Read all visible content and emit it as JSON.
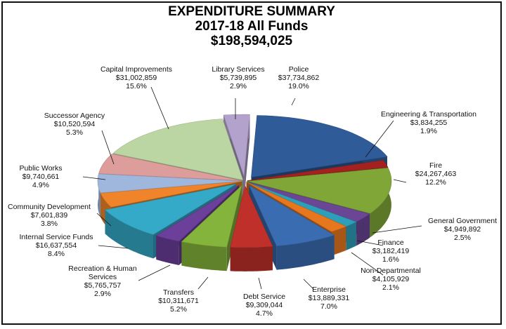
{
  "chart_data": {
    "type": "pie",
    "title": [
      "EXPENDITURE SUMMARY",
      "2017-18  All Funds",
      "$198,594,025"
    ],
    "slices": [
      {
        "name": "Police",
        "amount": "$37,734,862",
        "percent": 19.0,
        "pct_label": "19.0%",
        "color": "#2f5b98",
        "explode": 1
      },
      {
        "name": "Engineering & Transportation",
        "amount": "$3,834,255",
        "percent": 1.9,
        "pct_label": "1.9%",
        "color": "#a32220",
        "explode": 0
      },
      {
        "name": "Fire",
        "amount": "$24,267,463",
        "percent": 12.2,
        "pct_label": "12.2%",
        "color": "#7fa637",
        "explode": 0
      },
      {
        "name": "General Government",
        "amount": "$4,949,892",
        "percent": 2.5,
        "pct_label": "2.5%",
        "color": "#6a4694",
        "explode": 0
      },
      {
        "name": "Finance",
        "amount": "$3,182,419",
        "percent": 1.6,
        "pct_label": "1.6%",
        "color": "#2d9fb8",
        "explode": 0
      },
      {
        "name": "Non-Departmental",
        "amount": "$4,105,929",
        "percent": 2.1,
        "pct_label": "2.1%",
        "color": "#e7771e",
        "explode": 0
      },
      {
        "name": "Enterprise",
        "amount": "$13,889,331",
        "percent": 7.0,
        "pct_label": "7.0%",
        "color": "#3a6cb2",
        "explode": 1
      },
      {
        "name": "Debt Service",
        "amount": "$9,309,044",
        "percent": 4.7,
        "pct_label": "4.7%",
        "color": "#c0302a",
        "explode": 1
      },
      {
        "name": "Transfers",
        "amount": "$10,311,671",
        "percent": 5.2,
        "pct_label": "5.2%",
        "color": "#85b43c",
        "explode": 1
      },
      {
        "name": "Recreation & Human Services",
        "amount": "$5,765,757",
        "percent": 2.9,
        "pct_label": "2.9%",
        "color": "#6b3f9a",
        "explode": 1
      },
      {
        "name": "Internal Service Funds",
        "amount": "$16,637,554",
        "percent": 8.4,
        "pct_label": "8.4%",
        "color": "#35a9c8",
        "explode": 1
      },
      {
        "name": "Community Development",
        "amount": "$7,601,839",
        "percent": 3.8,
        "pct_label": "3.8%",
        "color": "#f0842a",
        "explode": 0
      },
      {
        "name": "Public Works",
        "amount": "$9,740,661",
        "percent": 4.9,
        "pct_label": "4.9%",
        "color": "#9fb6dd",
        "explode": 0
      },
      {
        "name": "Successor Agency",
        "amount": "$10,520,594",
        "percent": 5.3,
        "pct_label": "5.3%",
        "color": "#dc9d9b",
        "explode": 0
      },
      {
        "name": "Capital Improvements",
        "amount": "$31,002,859",
        "percent": 15.6,
        "pct_label": "15.6%",
        "color": "#bcd6a3",
        "explode": 0
      },
      {
        "name": "Library Services",
        "amount": "$5,739,895",
        "percent": 2.9,
        "pct_label": "2.9%",
        "color": "#b3a2cc",
        "explode": 1
      }
    ]
  }
}
